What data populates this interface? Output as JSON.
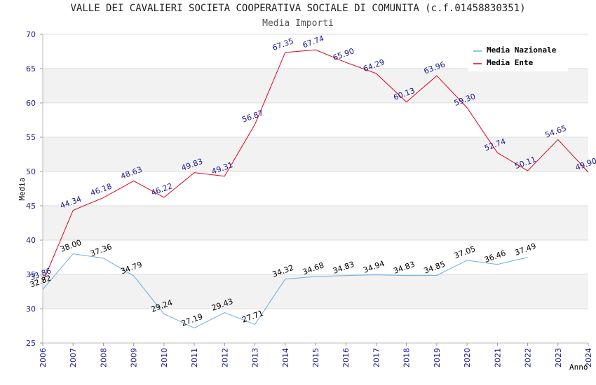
{
  "chart_data": {
    "type": "line",
    "title": "VALLE DEI CAVALIERI SOCIETA COOPERATIVA SOCIALE DI COMUNITA (c.f.01458830351)",
    "subtitle": "Media Importi",
    "xlabel": "Anno",
    "ylabel": "Media",
    "x": [
      "2006",
      "2007",
      "2008",
      "2009",
      "2010",
      "2011",
      "2012",
      "2013",
      "2014",
      "2015",
      "2016",
      "2017",
      "2018",
      "2019",
      "2020",
      "2021",
      "2022",
      "2023",
      "2024"
    ],
    "ylim": [
      25,
      70
    ],
    "yticks": [
      "25",
      "30",
      "35",
      "40",
      "45",
      "50",
      "55",
      "60",
      "65",
      "70"
    ],
    "grid": true,
    "legend_position": "top-right",
    "series": [
      {
        "name": "Media Nazionale",
        "color": "#6aaee6",
        "label_color": "#000000",
        "values": [
          32.82,
          38.0,
          37.36,
          34.79,
          29.24,
          27.19,
          29.43,
          27.71,
          34.32,
          34.68,
          34.83,
          34.94,
          34.83,
          34.85,
          37.05,
          36.46,
          37.49,
          null,
          null
        ],
        "labels": [
          "32.82",
          "38.00",
          "37.36",
          "34.79",
          "29.24",
          "27.19",
          "29.43",
          "27.71",
          "34.32",
          "34.68",
          "34.83",
          "34.94",
          "34.83",
          "34.85",
          "37.05",
          "36.46",
          "37.49",
          null,
          null
        ]
      },
      {
        "name": "Media Ente",
        "color": "#e0001a",
        "label_color": "#1a1a8c",
        "values": [
          33.86,
          44.34,
          46.18,
          48.63,
          46.22,
          49.83,
          49.31,
          56.87,
          67.35,
          67.74,
          65.9,
          64.29,
          60.13,
          63.96,
          59.3,
          52.74,
          50.11,
          54.65,
          49.9
        ],
        "labels": [
          "33.86",
          "44.34",
          "46.18",
          "48.63",
          "46.22",
          "49.83",
          "49.31",
          "56.87",
          "67.35",
          "67.74",
          "65.90",
          "64.29",
          "60.13",
          "63.96",
          "59.30",
          "52.74",
          "50.11",
          "54.65",
          "49.90"
        ]
      }
    ],
    "colors": {
      "axis_tick_text": "#1a1a8c",
      "band": "#f2f2f2",
      "grid": "#dddddd"
    }
  }
}
